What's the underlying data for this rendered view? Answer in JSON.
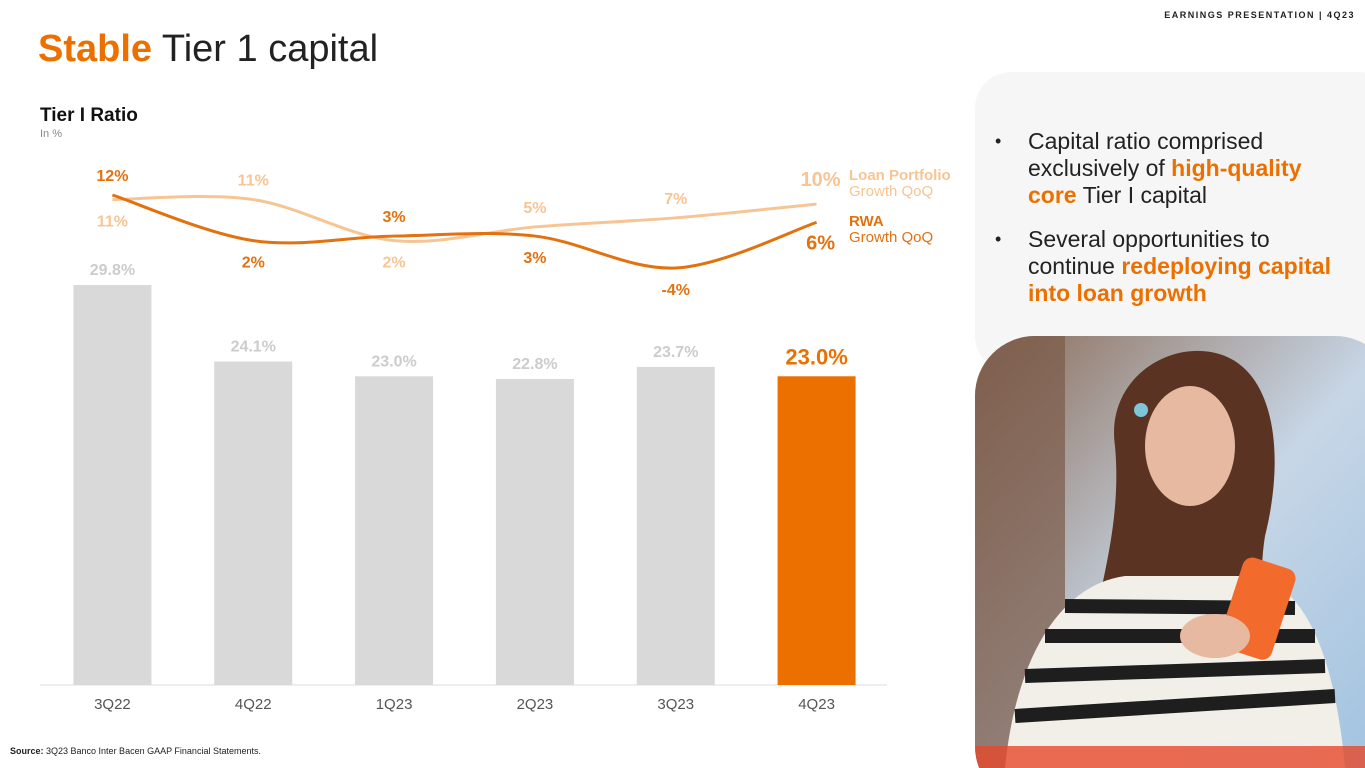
{
  "header": {
    "tag": "EARNINGS PRESENTATION | 4Q23",
    "title_highlight": "Stable",
    "title_rest": " Tier 1 capital"
  },
  "chart_data": {
    "type": "bar",
    "title": "Tier I Ratio",
    "subtitle": "In %",
    "categories": [
      "3Q22",
      "4Q22",
      "1Q23",
      "2Q23",
      "3Q23",
      "4Q23"
    ],
    "values": [
      29.8,
      24.1,
      23.0,
      22.8,
      23.7,
      23.0
    ],
    "value_labels": [
      "29.8%",
      "24.1%",
      "23.0%",
      "22.8%",
      "23.7%",
      "23.0%"
    ],
    "colors": [
      "#d9d9d9",
      "#d9d9d9",
      "#d9d9d9",
      "#d9d9d9",
      "#d9d9d9",
      "#ec7000"
    ],
    "lines": [
      {
        "name": "Loan Portfolio",
        "subname": "Growth QoQ",
        "color": "#f7c594",
        "values": [
          11,
          11,
          2,
          5,
          7,
          10
        ],
        "value_labels": [
          "11%",
          "11%",
          "2%",
          "5%",
          "7%",
          "10%"
        ]
      },
      {
        "name": "RWA",
        "subname": "Growth QoQ",
        "color": "#e2710e",
        "values": [
          12,
          2,
          3,
          3,
          -4,
          6
        ],
        "value_labels": [
          "12%",
          "2%",
          "3%",
          "3%",
          "-4%",
          "6%"
        ]
      }
    ]
  },
  "bullets": [
    [
      {
        "text": "Capital ratio comprised exclusively of "
      },
      {
        "text": "high-quality core",
        "highlight": true
      },
      {
        "text": " Tier I capital"
      }
    ],
    [
      {
        "text": "Several opportunities to continue "
      },
      {
        "text": "redeploying capital into loan growth",
        "highlight": true
      }
    ]
  ],
  "source": {
    "label": "Source:",
    "text": " 3Q23 Banco Inter Bacen GAAP Financial Statements."
  }
}
